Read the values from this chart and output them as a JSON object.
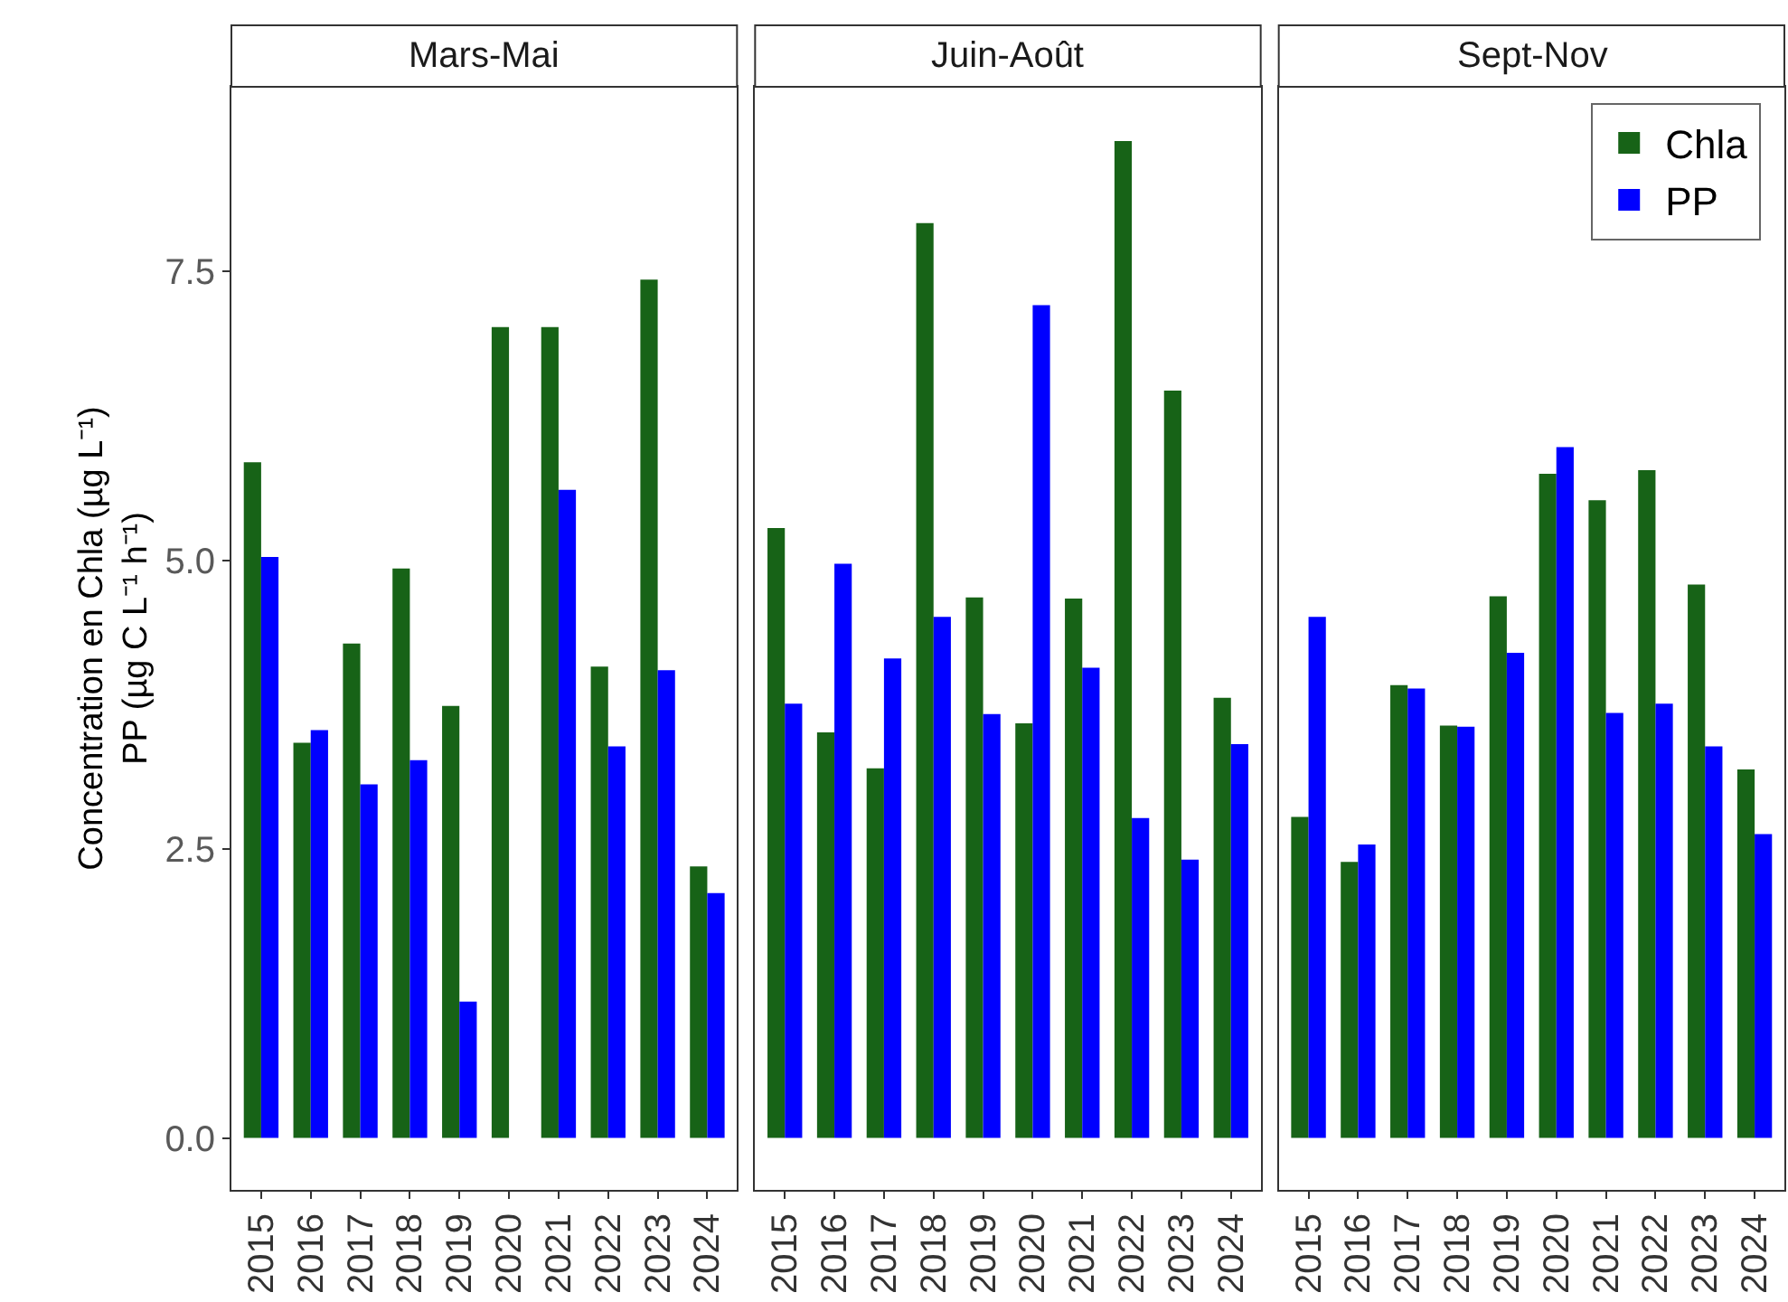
{
  "chart_data": [
    {
      "type": "bar",
      "title": "Mars-Mai",
      "ylabel": "Concentration en Chla (µg L⁻¹)\nPP (µg C L⁻¹ h⁻¹)",
      "categories": [
        "2015",
        "2016",
        "2017",
        "2018",
        "2019",
        "2020",
        "2021",
        "2022",
        "2023",
        "2024"
      ],
      "series": [
        {
          "name": "Chla",
          "color": "#176317",
          "values": [
            5.85,
            3.42,
            4.28,
            4.93,
            3.74,
            7.02,
            7.02,
            4.08,
            7.43,
            2.35
          ]
        },
        {
          "name": "PP",
          "color": "#0000ff",
          "values": [
            5.03,
            3.53,
            3.06,
            3.27,
            1.18,
            null,
            5.61,
            3.39,
            4.05,
            2.12
          ]
        }
      ],
      "ylim": [
        -0.45,
        9.1
      ],
      "yticks": [
        {
          "value": 0,
          "label": "0.0"
        },
        {
          "value": 2.5,
          "label": "2.5"
        },
        {
          "value": 5,
          "label": "5.0"
        },
        {
          "value": 7.5,
          "label": "7.5"
        }
      ],
      "legend": "top right"
    },
    {
      "type": "bar",
      "title": "Juin-Août",
      "categories": [
        "2015",
        "2016",
        "2017",
        "2018",
        "2019",
        "2020",
        "2021",
        "2022",
        "2023",
        "2024"
      ],
      "series": [
        {
          "color": "#176317",
          "values": [
            5.28,
            3.51,
            3.2,
            7.92,
            4.68,
            3.59,
            4.67,
            8.63,
            6.47,
            3.81
          ]
        },
        {
          "color": "#0000ff",
          "values": [
            3.76,
            4.97,
            4.15,
            4.51,
            3.67,
            7.21,
            4.07,
            2.77,
            2.41,
            3.41
          ]
        }
      ],
      "ylim": [
        -0.45,
        9.1
      ],
      "tick_labels": "x"
    },
    {
      "type": "bar",
      "title": "Sept-Nov",
      "categories": [
        "2015",
        "2016",
        "2017",
        "2018",
        "2019",
        "2020",
        "2021",
        "2022",
        "2023",
        "2024"
      ],
      "series": [
        {
          "color": "#176317",
          "values": [
            2.78,
            2.39,
            3.92,
            3.57,
            4.69,
            5.75,
            5.52,
            5.78,
            4.79,
            3.19
          ]
        },
        {
          "color": "#0000ff",
          "values": [
            4.51,
            2.54,
            3.89,
            3.56,
            4.2,
            5.98,
            3.68,
            3.76,
            3.39,
            2.63
          ]
        }
      ],
      "ylim": [
        -0.45,
        9.1
      ],
      "tick_labels": "x"
    }
  ]
}
